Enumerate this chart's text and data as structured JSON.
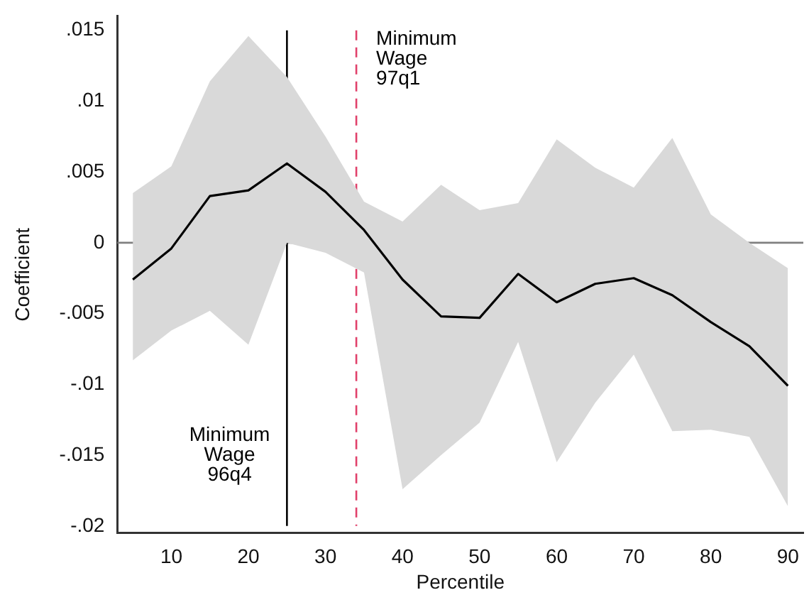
{
  "chart_data": {
    "type": "line",
    "xlabel": "Percentile",
    "ylabel": "Coefficient",
    "x": [
      5,
      10,
      15,
      20,
      25,
      30,
      35,
      40,
      45,
      50,
      55,
      60,
      65,
      70,
      75,
      80,
      85,
      90
    ],
    "series": [
      {
        "color": "#000000",
        "values": [
          -0.0026,
          -0.0004,
          0.0033,
          0.0037,
          0.0056,
          0.0036,
          0.0009,
          -0.0026,
          -0.0052,
          -0.0053,
          -0.0022,
          -0.0042,
          -0.0029,
          -0.0025,
          -0.0037,
          -0.0056,
          -0.0073,
          -0.0101
        ],
        "lower": [
          -0.0083,
          -0.0062,
          -0.0048,
          -0.0072,
          0.0,
          -0.0007,
          -0.0021,
          -0.0174,
          -0.015,
          -0.0127,
          -0.007,
          -0.0155,
          -0.0113,
          -0.0079,
          -0.0133,
          -0.0132,
          -0.0137,
          -0.0186
        ],
        "upper": [
          0.0035,
          0.0054,
          0.0114,
          0.0146,
          0.0117,
          0.0075,
          0.0029,
          0.0015,
          0.0041,
          0.0023,
          0.0028,
          0.0073,
          0.0053,
          0.0039,
          0.0074,
          0.002,
          0.0,
          -0.0018
        ]
      }
    ],
    "xlim": [
      3,
      92
    ],
    "xticks": [
      10,
      20,
      30,
      40,
      50,
      60,
      70,
      80,
      90
    ],
    "ylim": [
      -0.0205,
      0.016
    ],
    "yticks": [
      {
        "value": 0.015,
        "label": ".015"
      },
      {
        "value": 0.01,
        "label": ".01"
      },
      {
        "value": 0.005,
        "label": ".005"
      },
      {
        "value": 0,
        "label": "0"
      },
      {
        "value": -0.005,
        "label": "-.005"
      },
      {
        "value": -0.01,
        "label": "-.01"
      },
      {
        "value": -0.015,
        "label": "-.015"
      },
      {
        "value": -0.02,
        "label": "-.02"
      }
    ],
    "ref_lines": [
      {
        "axis": "y",
        "value": 0,
        "color": "#808080",
        "line_style": "solid"
      },
      {
        "axis": "x",
        "value": 25,
        "color": "#000000",
        "line_style": "solid",
        "label": "Minimum\nWage\n96q4"
      },
      {
        "axis": "x",
        "value": 34,
        "color": "#e0406a",
        "line_style": "dashed",
        "label": "Minimum\nWage\n97q1"
      }
    ],
    "grid": false,
    "legend": false,
    "marker": "none",
    "line_style": "solid"
  }
}
